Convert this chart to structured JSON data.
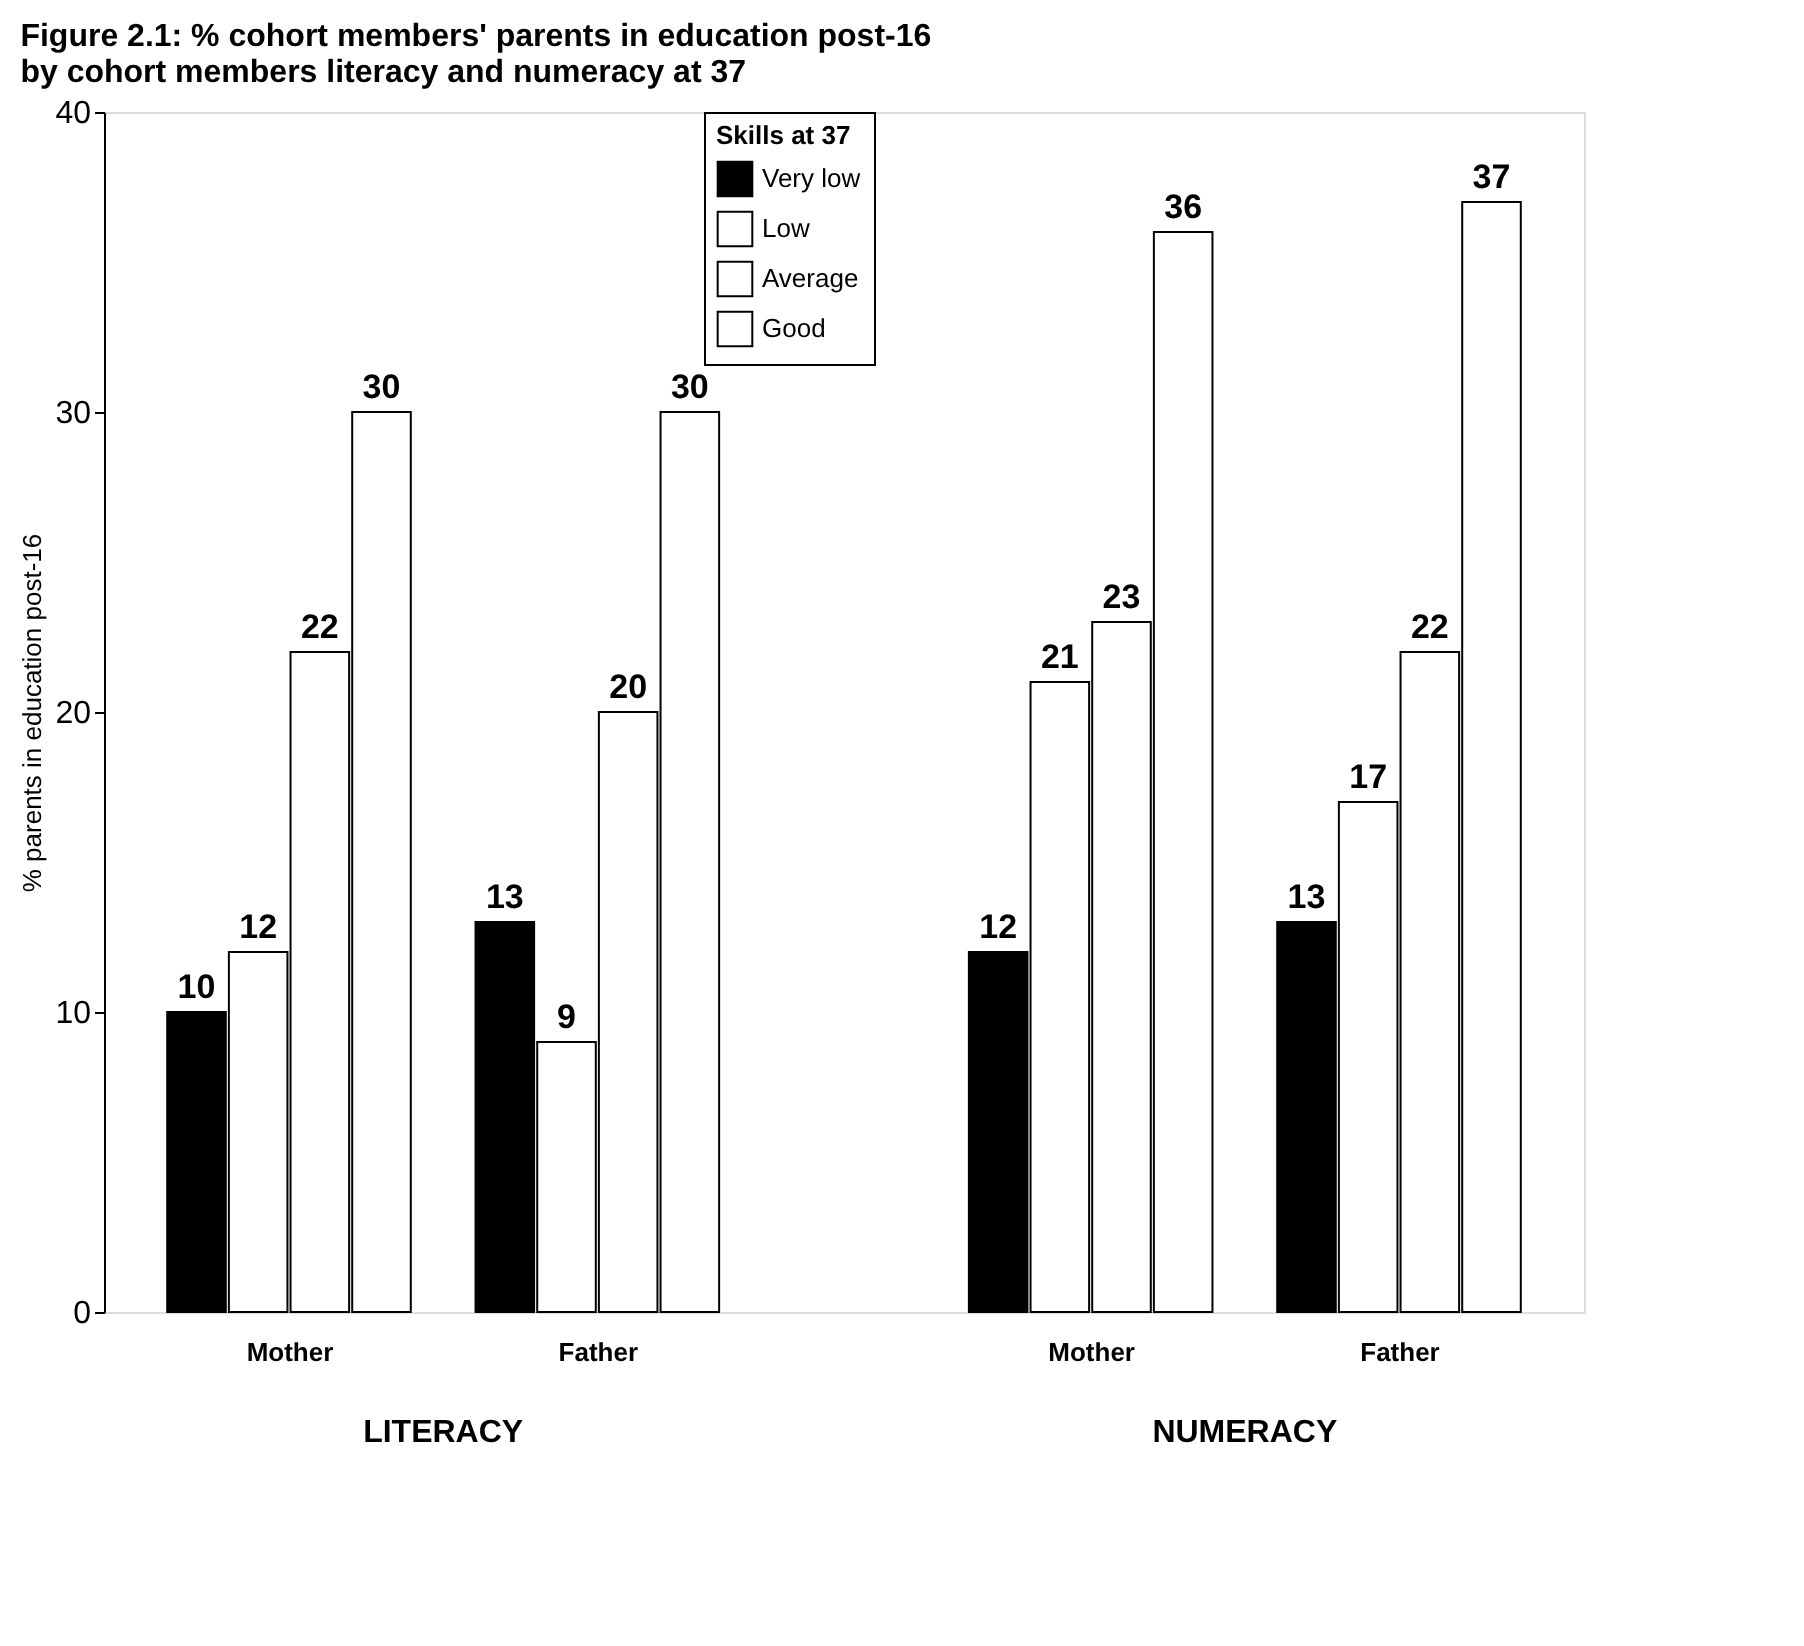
{
  "chart_data": {
    "type": "bar",
    "title": "Figure 2.1: % cohort members' parents in education post-16\nby cohort members literacy and numeracy at 37",
    "ylabel": "% parents in education post-16",
    "legend_title": "Skills at 37",
    "categories": [
      "Mother",
      "Father",
      "Mother",
      "Father"
    ],
    "series": [
      {
        "name": "Very low",
        "color": "#000000",
        "values": [
          10,
          13,
          12,
          13
        ]
      },
      {
        "name": "Low",
        "color": "#ffffff",
        "values": [
          12,
          9,
          21,
          17
        ]
      },
      {
        "name": "Average",
        "color": "#ffffff",
        "values": [
          22,
          20,
          23,
          22
        ]
      },
      {
        "name": "Good",
        "color": "#ffffff",
        "values": [
          30,
          30,
          36,
          37
        ]
      }
    ],
    "ylim": [
      0,
      40
    ],
    "yticks": [
      0,
      10,
      20,
      30,
      40
    ],
    "grid": false,
    "legend": "top right",
    "data_labels": true,
    "annotations": [
      "LITERACY",
      "NUMERACY"
    ]
  }
}
